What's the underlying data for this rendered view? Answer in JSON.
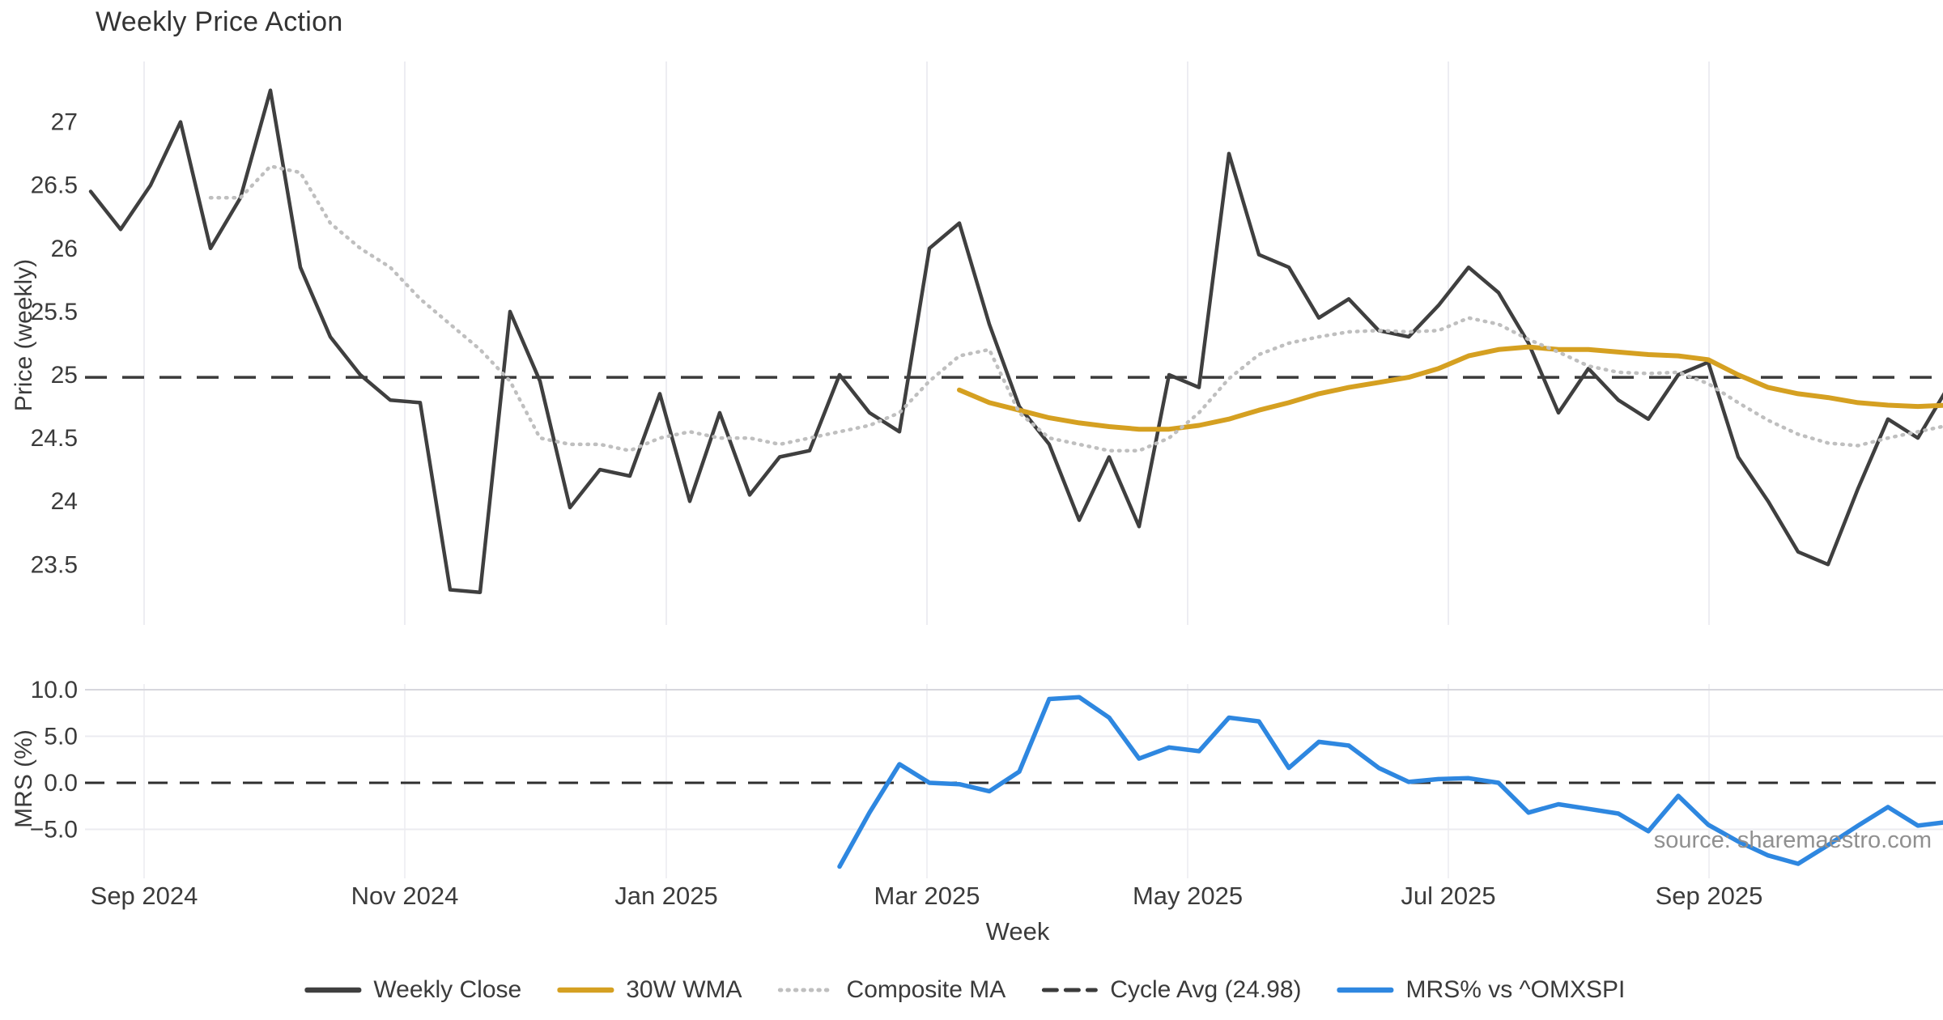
{
  "title": "Weekly Price Action",
  "source_note": "source: sharemaestro.com",
  "week_axis_label": "Week",
  "colors": {
    "weekly_close": "#3f3f3f",
    "wma30": "#d5a021",
    "composite_ma": "#bfbfbf",
    "cycle_avg": "#3b3b3b",
    "mrs": "#2e87e0",
    "grid": "#ededf2",
    "grid_strong": "#d7d7dd",
    "tick_text": "#3b3b3b",
    "source_text": "#909090"
  },
  "legend": [
    {
      "label": "Weekly Close",
      "color": "#3f3f3f",
      "style": "solid"
    },
    {
      "label": "30W WMA",
      "color": "#d5a021",
      "style": "solid"
    },
    {
      "label": "Composite MA",
      "color": "#bfbfbf",
      "style": "dotted"
    },
    {
      "label": "Cycle Avg (24.98)",
      "color": "#3b3b3b",
      "style": "dashed"
    },
    {
      "label": "MRS% vs ^OMXSPI",
      "color": "#2e87e0",
      "style": "solid"
    }
  ],
  "chart_data": {
    "type": "line",
    "title": "Weekly Price Action",
    "xlabel": "Week",
    "x_tick_labels": [
      "Sep 2024",
      "Nov 2024",
      "Jan 2025",
      "Mar 2025",
      "May 2025",
      "Jul 2025",
      "Sep 2025"
    ],
    "x_tick_weeks": [
      1.784,
      10.486,
      19.216,
      27.919,
      36.622,
      45.324,
      54.027
    ],
    "weeks_total": 63,
    "grid": "vertical month gridlines both panels; horizontal gridlines bottom panel only",
    "legend_position": "bottom center",
    "panels": [
      {
        "id": "price",
        "ylabel": "Price (weekly)",
        "ylim": [
          23.2,
          27.6
        ],
        "yticks": [
          27,
          26.5,
          26,
          25.5,
          25,
          24.5,
          24,
          23.5
        ],
        "ytick_labels": [
          "27",
          "26.5",
          "26",
          "25.5",
          "25",
          "24.5",
          "24",
          "23.5"
        ],
        "cycle_avg_value": 24.98,
        "series": [
          {
            "name": "Weekly Close",
            "style": "solid",
            "color": "#3f3f3f",
            "width": 4.5,
            "values": [
              26.45,
              26.15,
              26.5,
              27.0,
              26.0,
              26.4,
              27.25,
              25.85,
              25.3,
              25.0,
              24.8,
              24.78,
              23.3,
              23.28,
              25.5,
              24.95,
              23.95,
              24.25,
              24.2,
              24.85,
              24.0,
              24.7,
              24.05,
              24.35,
              24.4,
              25.0,
              24.7,
              24.55,
              26.0,
              26.2,
              25.4,
              24.75,
              24.45,
              23.85,
              24.35,
              23.8,
              25.0,
              24.9,
              26.75,
              25.95,
              25.85,
              25.45,
              25.6,
              25.35,
              25.3,
              25.55,
              25.85,
              25.65,
              25.25,
              24.7,
              25.05,
              24.8,
              24.65,
              25.0,
              25.1,
              24.35,
              24.0,
              23.6,
              23.5,
              24.1,
              24.65,
              24.5,
              24.9
            ]
          },
          {
            "name": "30W WMA",
            "style": "solid",
            "color": "#d5a021",
            "width": 6,
            "values": [
              null,
              null,
              null,
              null,
              null,
              null,
              null,
              null,
              null,
              null,
              null,
              null,
              null,
              null,
              null,
              null,
              null,
              null,
              null,
              null,
              null,
              null,
              null,
              null,
              null,
              null,
              null,
              null,
              null,
              24.88,
              24.78,
              24.72,
              24.66,
              24.62,
              24.59,
              24.57,
              24.57,
              24.6,
              24.65,
              24.72,
              24.78,
              24.85,
              24.9,
              24.94,
              24.98,
              25.05,
              25.15,
              25.2,
              25.22,
              25.2,
              25.2,
              25.18,
              25.16,
              25.15,
              25.12,
              25.0,
              24.9,
              24.85,
              24.82,
              24.78,
              24.76,
              24.75,
              24.76
            ]
          },
          {
            "name": "Composite MA",
            "style": "dotted",
            "color": "#bfbfbf",
            "width": 4.5,
            "values": [
              null,
              null,
              null,
              null,
              26.4,
              26.4,
              26.65,
              26.6,
              26.2,
              26.0,
              25.85,
              25.6,
              25.4,
              25.2,
              24.95,
              24.5,
              24.45,
              24.45,
              24.4,
              24.5,
              24.55,
              24.5,
              24.5,
              24.45,
              24.5,
              24.55,
              24.6,
              24.7,
              24.95,
              25.15,
              25.2,
              24.7,
              24.5,
              24.45,
              24.4,
              24.4,
              24.5,
              24.7,
              24.97,
              25.16,
              25.25,
              25.3,
              25.34,
              25.35,
              25.34,
              25.35,
              25.45,
              25.4,
              25.28,
              25.18,
              25.07,
              25.02,
              25.01,
              25.02,
              24.93,
              24.78,
              24.64,
              24.53,
              24.46,
              24.44,
              24.5,
              24.55,
              24.6
            ]
          },
          {
            "name": "Cycle Avg (24.98)",
            "style": "dashed",
            "color": "#3b3b3b",
            "width": 3.5,
            "constant": 24.98
          }
        ]
      },
      {
        "id": "mrs",
        "ylabel": "MRS (%)",
        "ylim": [
          -10.4,
          10.6
        ],
        "yticks": [
          10.0,
          5.0,
          0.0,
          -5.0
        ],
        "ytick_labels": [
          "10.0",
          "5.0",
          "0.0",
          "−5.0"
        ],
        "zero_line_dashed": true,
        "series": [
          {
            "name": "MRS% vs ^OMXSPI",
            "style": "solid",
            "color": "#2e87e0",
            "width": 5.5,
            "values": [
              null,
              null,
              null,
              null,
              null,
              null,
              null,
              null,
              null,
              null,
              null,
              null,
              null,
              null,
              null,
              null,
              null,
              null,
              null,
              null,
              null,
              null,
              null,
              null,
              null,
              -9.0,
              -3.2,
              2.0,
              0.0,
              -0.15,
              -0.9,
              1.2,
              9.0,
              9.2,
              7.0,
              2.6,
              3.8,
              3.4,
              7.0,
              6.6,
              1.6,
              4.4,
              4.0,
              1.6,
              0.1,
              0.4,
              0.5,
              0.0,
              -3.2,
              -2.3,
              -2.8,
              -3.3,
              -5.2,
              -1.4,
              -4.5,
              -6.3,
              -7.8,
              -8.7,
              -6.7,
              -4.6,
              -2.6,
              -4.6,
              -4.2
            ]
          }
        ]
      }
    ]
  }
}
